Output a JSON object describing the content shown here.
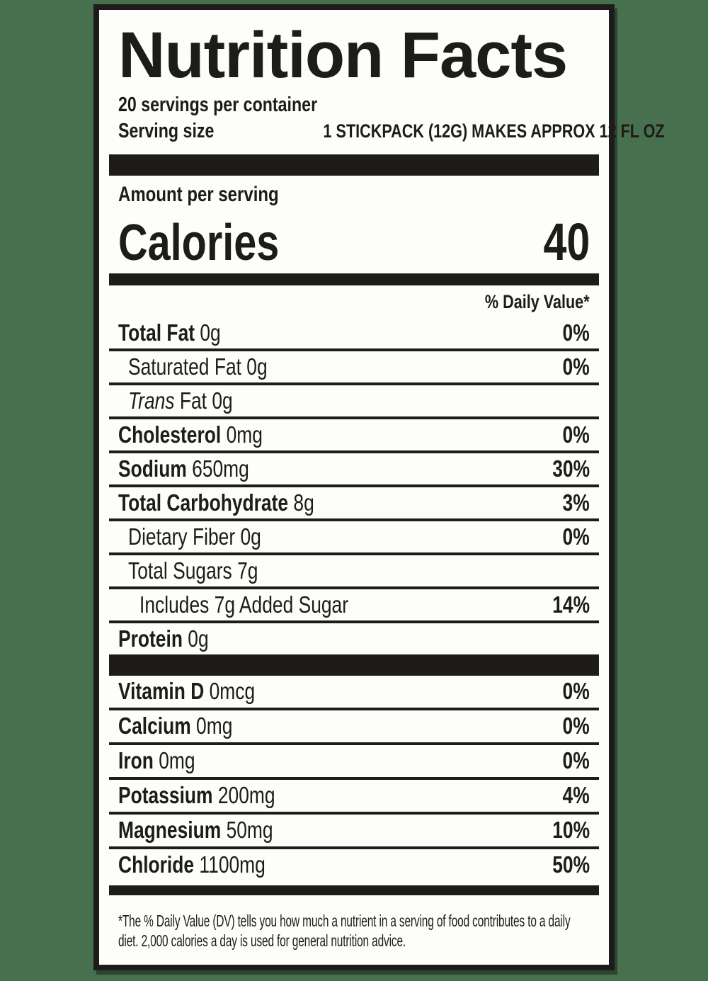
{
  "page": {
    "background_color": "#47704f",
    "label_background": "#fdfdfb",
    "ink_color": "#1e1b1b"
  },
  "header": {
    "title": "Nutrition Facts",
    "servings_per_container": "20 servings per container",
    "serving_size_label": "Serving size",
    "serving_size_value": "1 STICKPACK (12G) MAKES APPROX 12 FL OZ"
  },
  "calories": {
    "amount_per_serving_label": "Amount per serving",
    "label": "Calories",
    "value": "40"
  },
  "daily_value_header": "% Daily Value*",
  "nutrients": [
    {
      "name": "Total Fat",
      "amount": "0g",
      "dv": "0%",
      "bold": true,
      "indent": 0
    },
    {
      "name": "Saturated Fat",
      "amount": "0g",
      "dv": "0%",
      "bold": false,
      "indent": 1
    },
    {
      "italic_prefix": "Trans",
      "name": "Fat",
      "amount": "0g",
      "dv": "",
      "bold": false,
      "indent": 1
    },
    {
      "name": "Cholesterol",
      "amount": "0mg",
      "dv": "0%",
      "bold": true,
      "indent": 0
    },
    {
      "name": "Sodium",
      "amount": "650mg",
      "dv": "30%",
      "bold": true,
      "indent": 0
    },
    {
      "name": "Total Carbohydrate",
      "amount": "8g",
      "dv": "3%",
      "bold": true,
      "indent": 0
    },
    {
      "name": "Dietary Fiber",
      "amount": "0g",
      "dv": "0%",
      "bold": false,
      "indent": 1
    },
    {
      "name": "Total Sugars",
      "amount": "7g",
      "dv": "",
      "bold": false,
      "indent": 1
    },
    {
      "name": "Includes 7g Added Sugar",
      "amount": "",
      "dv": "14%",
      "bold": false,
      "indent": 2
    },
    {
      "name": "Protein",
      "amount": "0g",
      "dv": "",
      "bold": true,
      "indent": 0
    }
  ],
  "micronutrients": [
    {
      "name": "Vitamin D",
      "amount": "0mcg",
      "dv": "0%",
      "bold": true,
      "indent": 0
    },
    {
      "name": "Calcium",
      "amount": "0mg",
      "dv": "0%",
      "bold": true,
      "indent": 0
    },
    {
      "name": "Iron",
      "amount": "0mg",
      "dv": "0%",
      "bold": true,
      "indent": 0
    },
    {
      "name": "Potassium",
      "amount": "200mg",
      "dv": "4%",
      "bold": true,
      "indent": 0
    },
    {
      "name": "Magnesium",
      "amount": "50mg",
      "dv": "10%",
      "bold": true,
      "indent": 0
    },
    {
      "name": "Chloride",
      "amount": "1100mg",
      "dv": "50%",
      "bold": true,
      "indent": 0
    }
  ],
  "footnote": "*The % Daily Value (DV) tells you how much a nutrient in a serving of food contributes to a daily diet. 2,000 calories a day is used for general nutrition advice."
}
